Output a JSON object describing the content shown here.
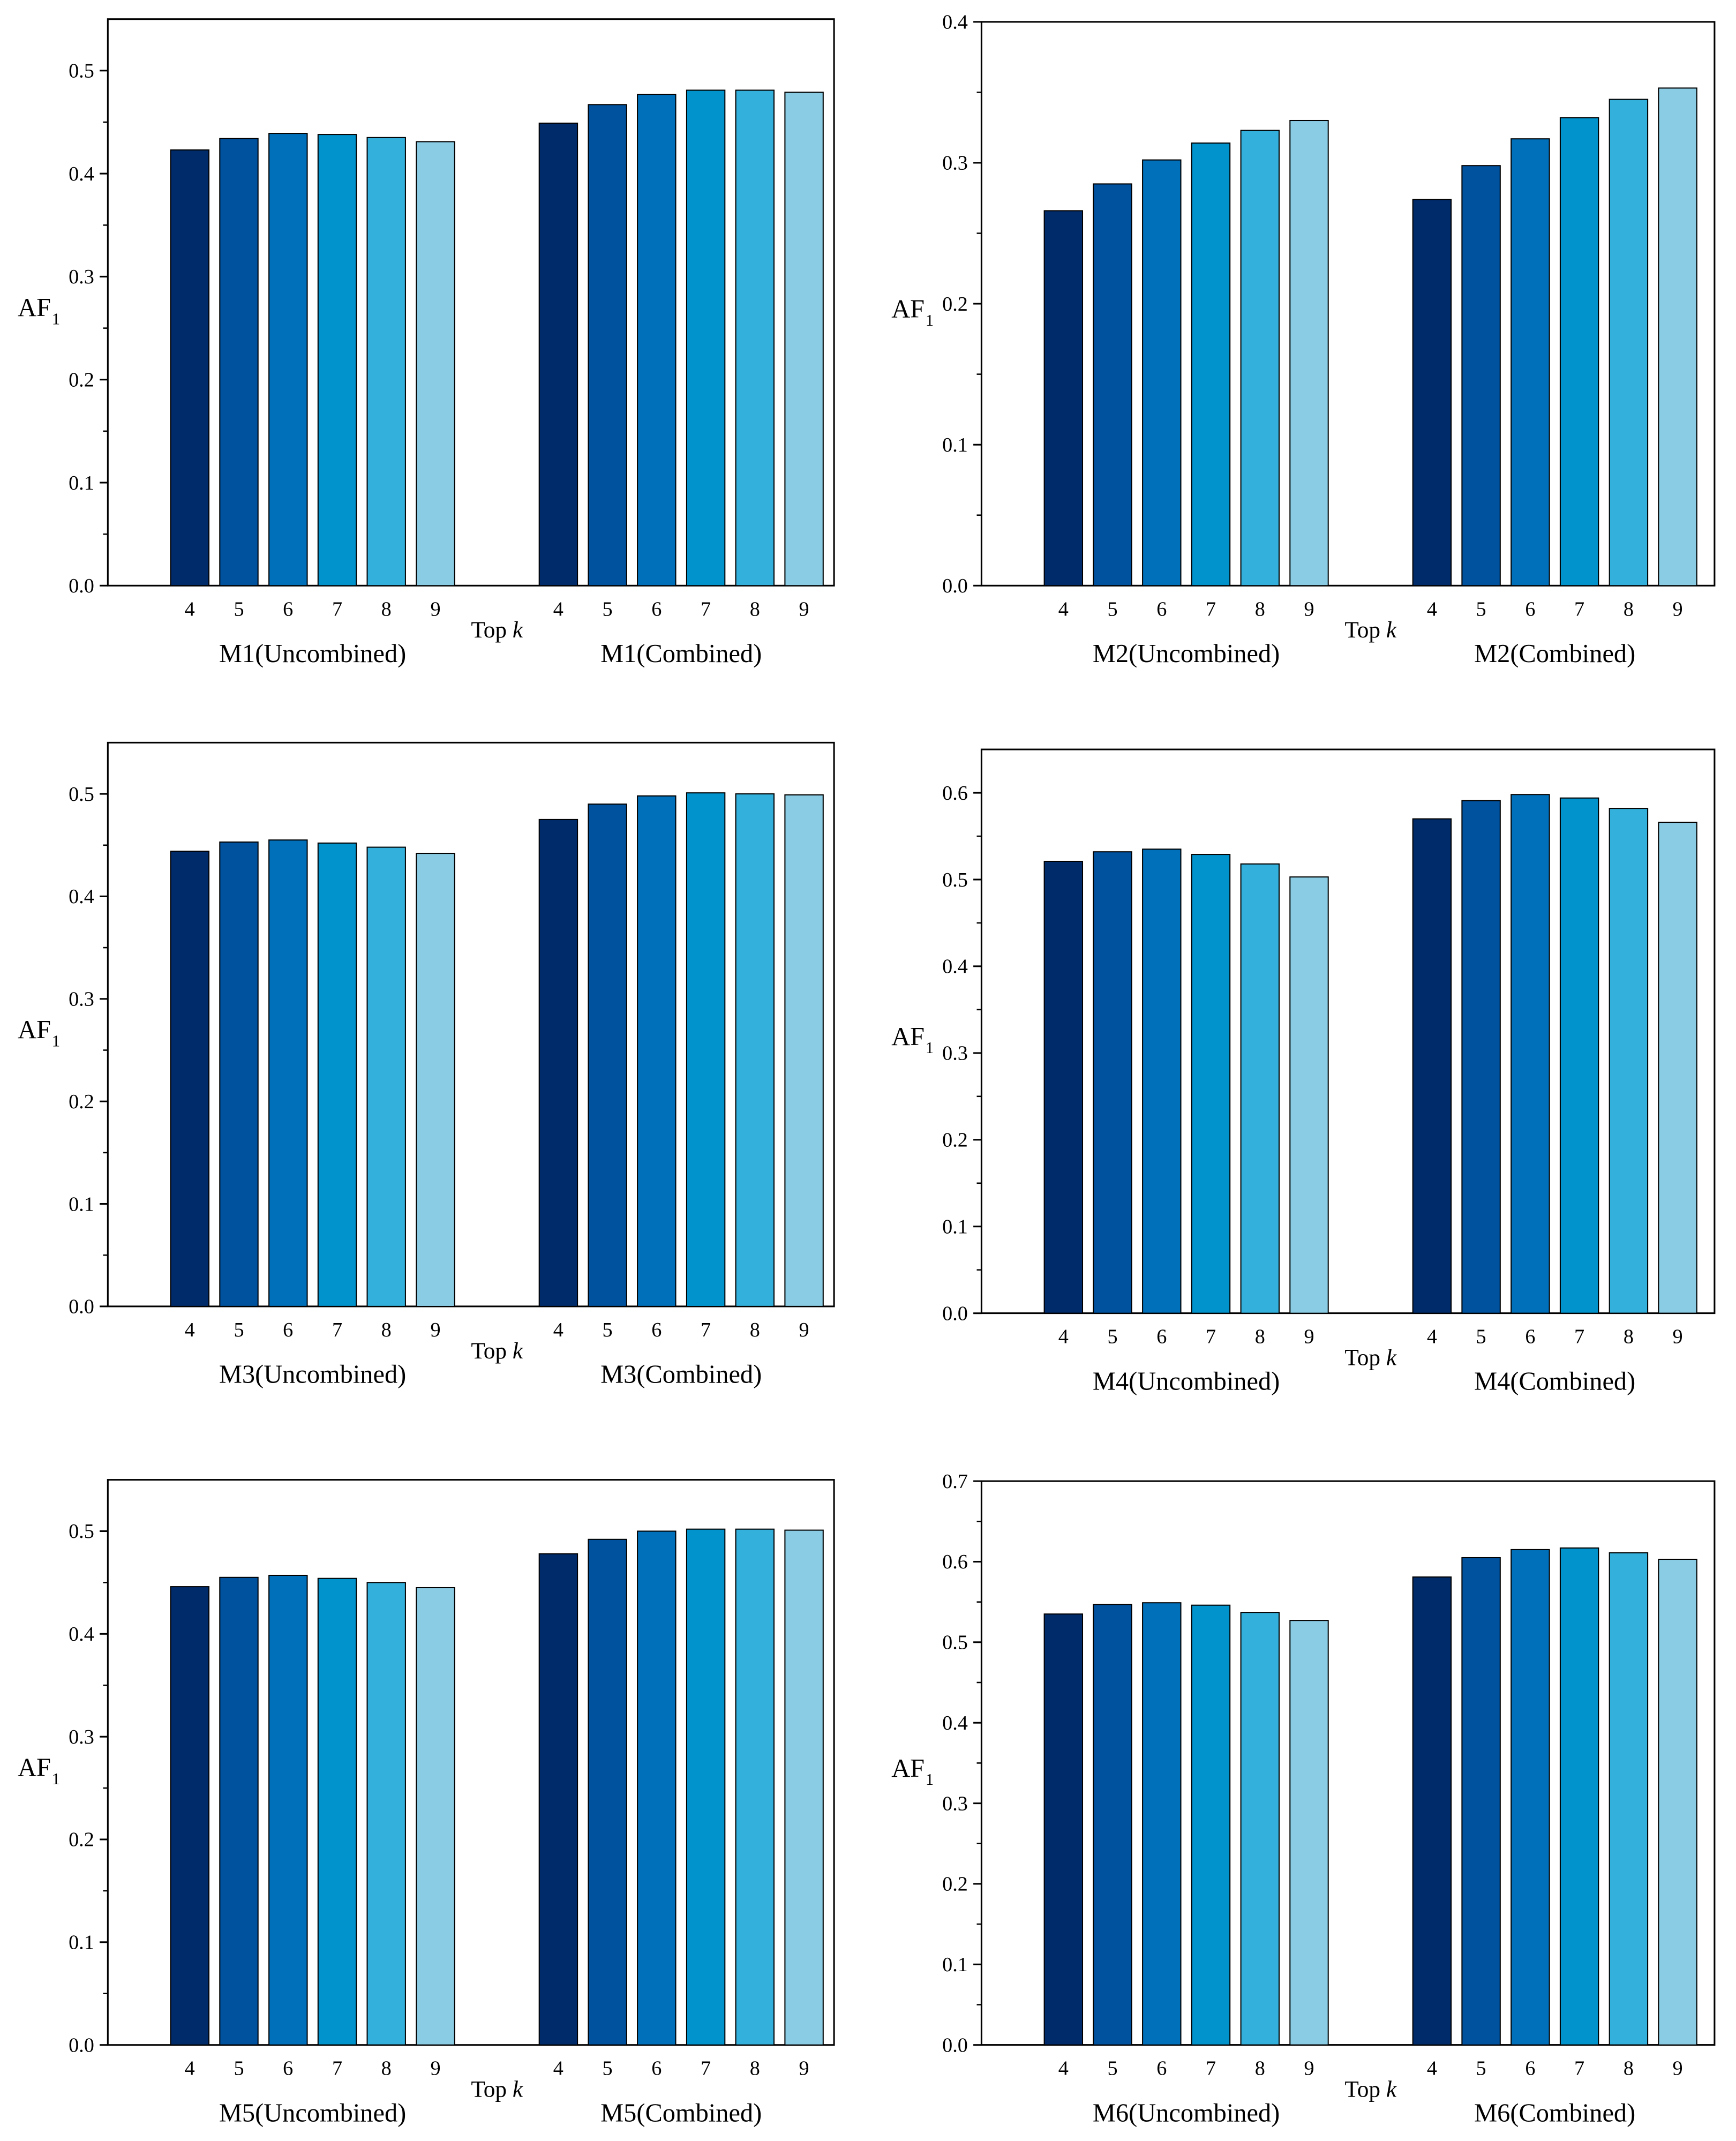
{
  "colors": {
    "bars": [
      "#002B6B",
      "#00519E",
      "#0070BB",
      "#0093CC",
      "#33B0DB",
      "#8ACCE4"
    ],
    "axis": "#000000",
    "bar_edge": "#000000",
    "background": "#ffffff"
  },
  "chart_data": [
    {
      "type": "bar",
      "ylabel": "AF",
      "ylabel_sub": "1",
      "xlabel_prefix": "Top ",
      "xlabel_var": "k",
      "ylim": [
        0,
        0.55
      ],
      "yticks": [
        "0.0",
        "0.1",
        "0.2",
        "0.3",
        "0.4",
        "0.5"
      ],
      "categories": [
        "4",
        "5",
        "6",
        "7",
        "8",
        "9"
      ],
      "groups": [
        {
          "label": "M1(Uncombined)",
          "values": [
            0.423,
            0.434,
            0.439,
            0.438,
            0.435,
            0.431
          ]
        },
        {
          "label": "M1(Combined)",
          "values": [
            0.449,
            0.467,
            0.477,
            0.481,
            0.481,
            0.479
          ]
        }
      ],
      "grid": false
    },
    {
      "type": "bar",
      "ylabel": "AF",
      "ylabel_sub": "1",
      "xlabel_prefix": "Top ",
      "xlabel_var": "k",
      "ylim": [
        0,
        0.4
      ],
      "yticks": [
        "0.0",
        "0.1",
        "0.2",
        "0.3",
        "0.4"
      ],
      "categories": [
        "4",
        "5",
        "6",
        "7",
        "8",
        "9"
      ],
      "groups": [
        {
          "label": "M2(Uncombined)",
          "values": [
            0.266,
            0.285,
            0.302,
            0.314,
            0.323,
            0.33
          ]
        },
        {
          "label": "M2(Combined)",
          "values": [
            0.274,
            0.298,
            0.317,
            0.332,
            0.345,
            0.353
          ]
        }
      ],
      "grid": false
    },
    {
      "type": "bar",
      "ylabel": "AF",
      "ylabel_sub": "1",
      "xlabel_prefix": "Top ",
      "xlabel_var": "k",
      "ylim": [
        0,
        0.55
      ],
      "yticks": [
        "0.0",
        "0.1",
        "0.2",
        "0.3",
        "0.4",
        "0.5"
      ],
      "categories": [
        "4",
        "5",
        "6",
        "7",
        "8",
        "9"
      ],
      "groups": [
        {
          "label": "M3(Uncombined)",
          "values": [
            0.444,
            0.453,
            0.455,
            0.452,
            0.448,
            0.442
          ]
        },
        {
          "label": "M3(Combined)",
          "values": [
            0.475,
            0.49,
            0.498,
            0.501,
            0.5,
            0.499
          ]
        }
      ],
      "grid": false
    },
    {
      "type": "bar",
      "ylabel": "AF",
      "ylabel_sub": "1",
      "xlabel_prefix": "Top ",
      "xlabel_var": "k",
      "ylim": [
        0,
        0.65
      ],
      "yticks": [
        "0.0",
        "0.1",
        "0.2",
        "0.3",
        "0.4",
        "0.5",
        "0.6"
      ],
      "categories": [
        "4",
        "5",
        "6",
        "7",
        "8",
        "9"
      ],
      "groups": [
        {
          "label": "M4(Uncombined)",
          "values": [
            0.521,
            0.532,
            0.535,
            0.529,
            0.518,
            0.503
          ]
        },
        {
          "label": "M4(Combined)",
          "values": [
            0.57,
            0.591,
            0.598,
            0.594,
            0.582,
            0.566
          ]
        }
      ],
      "grid": false
    },
    {
      "type": "bar",
      "ylabel": "AF",
      "ylabel_sub": "1",
      "xlabel_prefix": "Top ",
      "xlabel_var": "k",
      "ylim": [
        0,
        0.55
      ],
      "yticks": [
        "0.0",
        "0.1",
        "0.2",
        "0.3",
        "0.4",
        "0.5"
      ],
      "categories": [
        "4",
        "5",
        "6",
        "7",
        "8",
        "9"
      ],
      "groups": [
        {
          "label": "M5(Uncombined)",
          "values": [
            0.446,
            0.455,
            0.457,
            0.454,
            0.45,
            0.445
          ]
        },
        {
          "label": "M5(Combined)",
          "values": [
            0.478,
            0.492,
            0.5,
            0.502,
            0.502,
            0.501
          ]
        }
      ],
      "grid": false
    },
    {
      "type": "bar",
      "ylabel": "AF",
      "ylabel_sub": "1",
      "xlabel_prefix": "Top ",
      "xlabel_var": "k",
      "ylim": [
        0,
        0.7
      ],
      "yticks": [
        "0.0",
        "0.1",
        "0.2",
        "0.3",
        "0.4",
        "0.5",
        "0.6",
        "0.7"
      ],
      "categories": [
        "4",
        "5",
        "6",
        "7",
        "8",
        "9"
      ],
      "groups": [
        {
          "label": "M6(Uncombined)",
          "values": [
            0.535,
            0.547,
            0.549,
            0.546,
            0.537,
            0.527
          ]
        },
        {
          "label": "M6(Combined)",
          "values": [
            0.581,
            0.605,
            0.615,
            0.617,
            0.611,
            0.603
          ]
        }
      ],
      "grid": false
    }
  ]
}
